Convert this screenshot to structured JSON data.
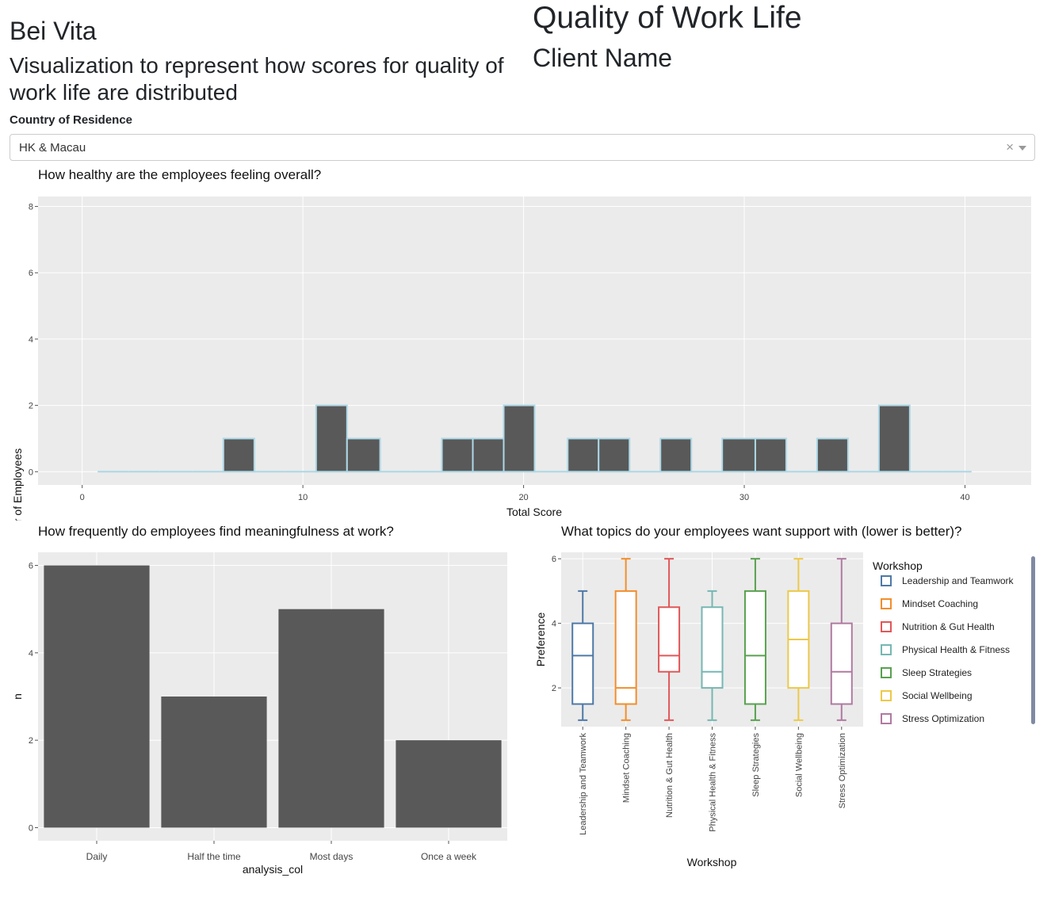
{
  "header": {
    "brand": "Bei Vita",
    "subtitle": "Visualization to represent how scores for quality of work life are distributed",
    "title": "Quality of Work Life",
    "client": "Client Name"
  },
  "filter": {
    "label": "Country of Residence",
    "value": "HK & Macau",
    "clear": "×"
  },
  "charts": {
    "histogram": {
      "title": "How healthy are the employees feeling overall?",
      "xlabel": "Total Score",
      "ylabel": "Number of Employees",
      "xticks": [
        "0",
        "10",
        "20",
        "30",
        "40"
      ],
      "yticks": [
        "0",
        "2",
        "4",
        "6",
        "8"
      ]
    },
    "bars": {
      "title": "How frequently do employees find meaningfulness at work?",
      "xlabel": "analysis_col",
      "ylabel": "n",
      "yticks": [
        "0",
        "2",
        "4",
        "6"
      ]
    },
    "boxes": {
      "title": "What topics do your employees want support with (lower is better)?",
      "xlabel": "Workshop",
      "ylabel": "Preference",
      "legend_title": "Workshop",
      "yticks": [
        "2",
        "4",
        "6"
      ]
    }
  },
  "chart_data": [
    {
      "type": "bar",
      "subtype": "histogram",
      "bins": [
        {
          "start": 0.7,
          "end": 2.1,
          "count": 0
        },
        {
          "start": 2.1,
          "end": 3.5,
          "count": 0
        },
        {
          "start": 3.5,
          "end": 5.0,
          "count": 0
        },
        {
          "start": 5.0,
          "end": 6.4,
          "count": 0
        },
        {
          "start": 6.4,
          "end": 7.8,
          "count": 1
        },
        {
          "start": 7.8,
          "end": 9.2,
          "count": 0
        },
        {
          "start": 9.2,
          "end": 10.6,
          "count": 0
        },
        {
          "start": 10.6,
          "end": 12.0,
          "count": 2
        },
        {
          "start": 12.0,
          "end": 13.5,
          "count": 1
        },
        {
          "start": 13.5,
          "end": 14.9,
          "count": 0
        },
        {
          "start": 14.9,
          "end": 16.3,
          "count": 0
        },
        {
          "start": 16.3,
          "end": 17.7,
          "count": 1
        },
        {
          "start": 17.7,
          "end": 19.1,
          "count": 1
        },
        {
          "start": 19.1,
          "end": 20.5,
          "count": 2
        },
        {
          "start": 20.5,
          "end": 22.0,
          "count": 0
        },
        {
          "start": 22.0,
          "end": 23.4,
          "count": 1
        },
        {
          "start": 23.4,
          "end": 24.8,
          "count": 1
        },
        {
          "start": 24.8,
          "end": 26.2,
          "count": 0
        },
        {
          "start": 26.2,
          "end": 27.6,
          "count": 1
        },
        {
          "start": 27.6,
          "end": 29.0,
          "count": 0
        },
        {
          "start": 29.0,
          "end": 30.5,
          "count": 1
        },
        {
          "start": 30.5,
          "end": 31.9,
          "count": 1
        },
        {
          "start": 31.9,
          "end": 33.3,
          "count": 0
        },
        {
          "start": 33.3,
          "end": 34.7,
          "count": 1
        },
        {
          "start": 34.7,
          "end": 36.1,
          "count": 0
        },
        {
          "start": 36.1,
          "end": 37.5,
          "count": 2
        },
        {
          "start": 37.5,
          "end": 39.0,
          "count": 0
        },
        {
          "start": 39.0,
          "end": 40.3,
          "count": 0
        }
      ],
      "xlim": [
        -2,
        43
      ],
      "ylim": [
        -0.4,
        8.3
      ],
      "bar_color": "#595959",
      "edge_color": "#add8e6",
      "grid": true
    },
    {
      "type": "bar",
      "categories": [
        "Daily",
        "Half the time",
        "Most days",
        "Once a week"
      ],
      "values": [
        6,
        3,
        5,
        2
      ],
      "ylim": [
        -0.3,
        6.3
      ],
      "bar_color": "#595959",
      "grid": true
    },
    {
      "type": "box",
      "categories": [
        "Leadership and Teamwork",
        "Mindset Coaching",
        "Nutrition & Gut Health",
        "Physical Health & Fitness",
        "Sleep Strategies",
        "Social Wellbeing",
        "Stress Optimization"
      ],
      "series": [
        {
          "name": "Leadership and Teamwork",
          "min": 1,
          "q1": 1.5,
          "median": 3,
          "q3": 4,
          "max": 5,
          "color": "#4e79a7"
        },
        {
          "name": "Mindset Coaching",
          "min": 1,
          "q1": 1.5,
          "median": 2,
          "q3": 5,
          "max": 6,
          "color": "#f28e2b"
        },
        {
          "name": "Nutrition & Gut Health",
          "min": 1,
          "q1": 2.5,
          "median": 3,
          "q3": 4.5,
          "max": 6,
          "color": "#e15759"
        },
        {
          "name": "Physical Health & Fitness",
          "min": 1,
          "q1": 2,
          "median": 2.5,
          "q3": 4.5,
          "max": 5,
          "color": "#76b7b2"
        },
        {
          "name": "Sleep Strategies",
          "min": 1,
          "q1": 1.5,
          "median": 3,
          "q3": 5,
          "max": 6,
          "color": "#59a14f"
        },
        {
          "name": "Social Wellbeing",
          "min": 1,
          "q1": 2,
          "median": 3.5,
          "q3": 5,
          "max": 6,
          "color": "#edc948"
        },
        {
          "name": "Stress Optimization",
          "min": 1,
          "q1": 1.5,
          "median": 2.5,
          "q3": 4,
          "max": 6,
          "color": "#b07aa1"
        }
      ],
      "ylim": [
        0.8,
        6.2
      ],
      "legend": "right",
      "grid": true
    }
  ]
}
